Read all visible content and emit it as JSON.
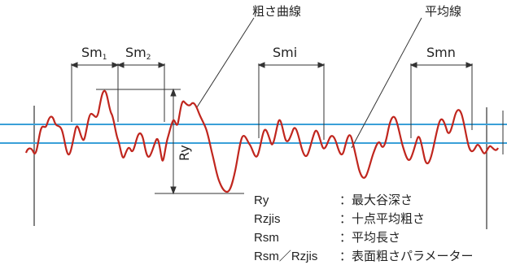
{
  "callouts": {
    "roughness_curve": "粗さ曲線",
    "mean_line": "平均線"
  },
  "intervals": {
    "sm1": {
      "base": "Sm",
      "sub": "1"
    },
    "sm2": {
      "base": "Sm",
      "sub": "2"
    },
    "smi": "Smi",
    "smn": "Smn"
  },
  "ry_label": "Ry",
  "legend": [
    {
      "term": "Ry",
      "definition": "：最大谷深さ"
    },
    {
      "term": "Rzjis",
      "definition": "：十点平均粗さ"
    },
    {
      "term": "Rsm",
      "definition": "：平均長さ"
    },
    {
      "term": "Rsm／Rzjis",
      "definition": "：表面粗さパラメーター"
    }
  ],
  "colors": {
    "curve": "#c0261e",
    "mean_line": "#3aa0d8",
    "annotation": "#333333"
  }
}
